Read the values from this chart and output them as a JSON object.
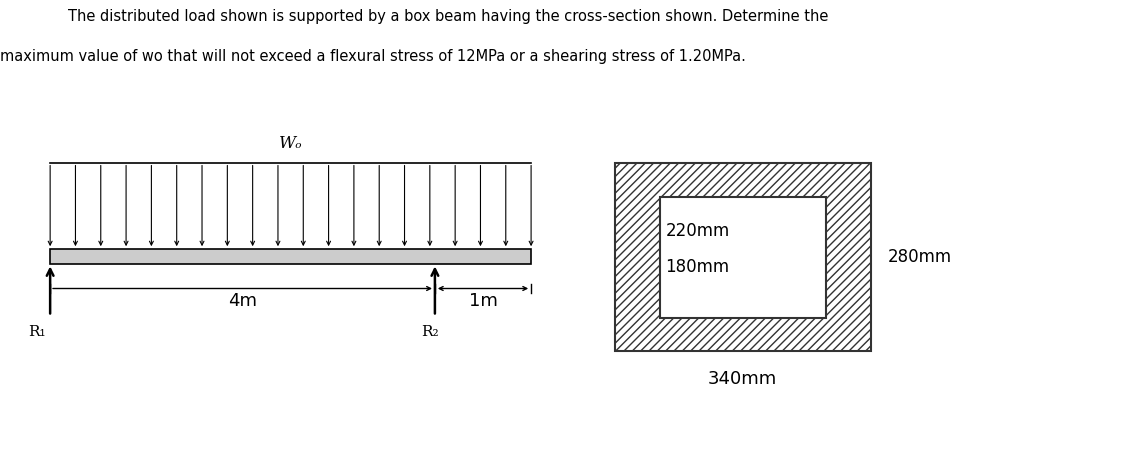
{
  "title_line1": "The distributed load shown is supported by a box beam having the cross-section shown. Determine the",
  "title_line2": "maximum value of wo that will not exceed a flexural stress of 12MPa or a shearing stress of 1.20MPa.",
  "bg_color": "#ffffff",
  "text_color": "#000000",
  "label_220mm": "220mm",
  "label_180mm": "180mm",
  "label_280mm": "280mm",
  "label_340mm": "340mm",
  "label_4m": "4m",
  "label_1m": "1m",
  "label_R1": "R₁",
  "label_R2": "R₂",
  "label_wo": "Wₒ"
}
